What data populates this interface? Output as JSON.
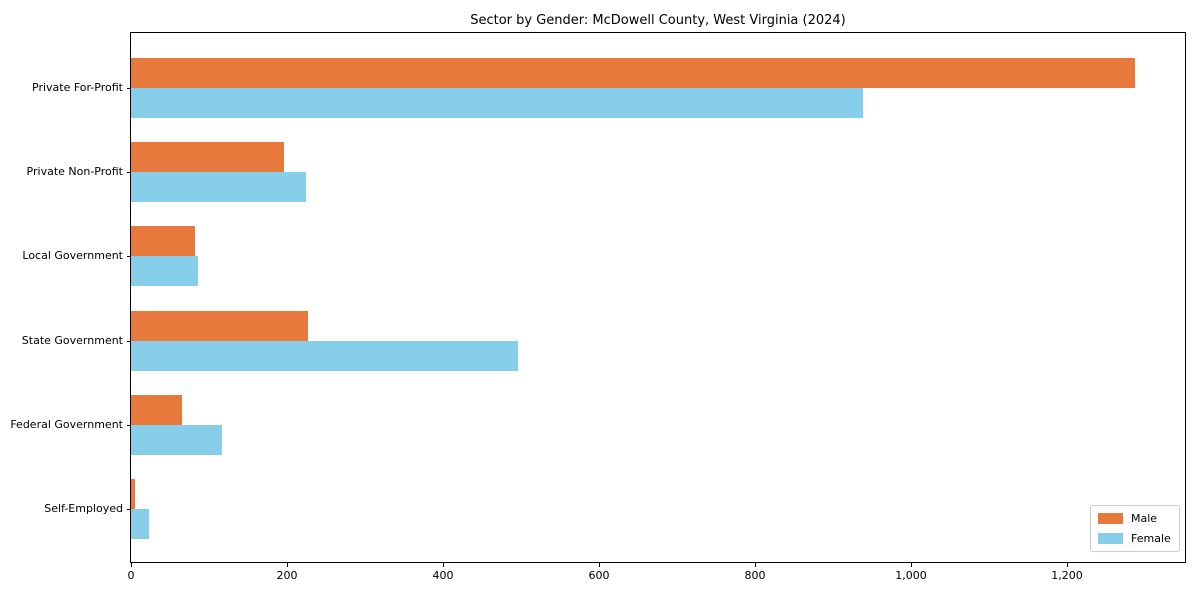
{
  "chart_data": {
    "type": "bar",
    "orientation": "horizontal",
    "title": "Sector by Gender: McDowell County, West Virginia (2024)",
    "categories": [
      "Private For-Profit",
      "Private Non-Profit",
      "Local Government",
      "State Government",
      "Federal Government",
      "Self-Employed"
    ],
    "series": [
      {
        "name": "Male",
        "color": "#E8793C",
        "values": [
          1288,
          196,
          82,
          227,
          65,
          5
        ]
      },
      {
        "name": "Female",
        "color": "#87CEEB",
        "values": [
          939,
          224,
          86,
          497,
          117,
          23
        ]
      }
    ],
    "xlabel": "",
    "ylabel": "",
    "x_ticks": [
      0,
      200,
      400,
      600,
      800,
      1000,
      1200
    ],
    "x_tick_labels": [
      "0",
      "200",
      "400",
      "600",
      "800",
      "1,000",
      "1,200"
    ],
    "xlim": [
      0,
      1352
    ],
    "grid": false,
    "legend_position": "lower right",
    "background_color": "#ffffff",
    "axis_color": "#000000",
    "text_color": "#000000"
  }
}
